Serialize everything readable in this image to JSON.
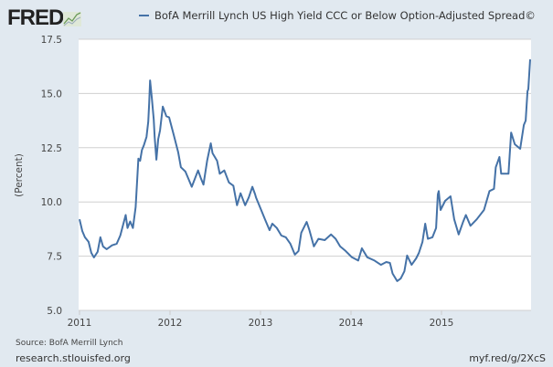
{
  "header": {
    "logo": "FRED",
    "logo_icon": "line-chart-icon"
  },
  "footer": {
    "source": "Source: BofA Merrill Lynch",
    "site": "research.stlouisfed.org",
    "short_url": "myf.red/g/2XcS"
  },
  "colors": {
    "line": "#4572a7",
    "background": "#e1e9f0",
    "plot": "#ffffff",
    "grid": "#d0d0d0"
  },
  "chart_data": {
    "type": "line",
    "title": "",
    "legend": [
      "BofA Merrill Lynch US High Yield CCC or Below Option-Adjusted Spread©"
    ],
    "legend_placement": "top",
    "xlabel": "",
    "ylabel": "(Percent)",
    "xlim": [
      2011.0,
      2016.0
    ],
    "ylim": [
      5.0,
      17.5
    ],
    "x_ticks": [
      "2011",
      "2012",
      "2013",
      "2014",
      "2015"
    ],
    "y_ticks": [
      "5.0",
      "7.5",
      "10.0",
      "12.5",
      "15.0",
      "17.5"
    ],
    "grid": true,
    "series": [
      {
        "name": "BofA Merrill Lynch US High Yield CCC or Below Option-Adjusted Spread©",
        "x": [
          2011.0,
          2011.03,
          2011.06,
          2011.1,
          2011.13,
          2011.16,
          2011.2,
          2011.23,
          2011.26,
          2011.3,
          2011.36,
          2011.41,
          2011.45,
          2011.51,
          2011.53,
          2011.56,
          2011.59,
          2011.62,
          2011.65,
          2011.67,
          2011.69,
          2011.71,
          2011.74,
          2011.76,
          2011.77,
          2011.78,
          2011.8,
          2011.82,
          2011.83,
          2011.85,
          2011.87,
          2011.89,
          2011.92,
          2011.96,
          2011.99,
          2012.04,
          2012.09,
          2012.12,
          2012.17,
          2012.21,
          2012.24,
          2012.31,
          2012.34,
          2012.37,
          2012.41,
          2012.45,
          2012.47,
          2012.52,
          2012.55,
          2012.6,
          2012.65,
          2012.7,
          2012.74,
          2012.78,
          2012.83,
          2012.87,
          2012.91,
          2012.94,
          2012.95,
          2013.0,
          2013.05,
          2013.1,
          2013.13,
          2013.18,
          2013.23,
          2013.28,
          2013.33,
          2013.38,
          2013.42,
          2013.45,
          2013.51,
          2013.54,
          2013.59,
          2013.64,
          2013.71,
          2013.78,
          2013.83,
          2013.88,
          2013.94,
          2014.01,
          2014.08,
          2014.12,
          2014.18,
          2014.26,
          2014.33,
          2014.39,
          2014.43,
          2014.46,
          2014.51,
          2014.55,
          2014.59,
          2014.62,
          2014.67,
          2014.72,
          2014.75,
          2014.79,
          2014.82,
          2014.85,
          2014.9,
          2014.94,
          2014.96,
          2014.97,
          2014.99,
          2015.04,
          2015.1,
          2015.14,
          2015.19,
          2015.24,
          2015.27,
          2015.32,
          2015.39,
          2015.47,
          2015.53,
          2015.58,
          2015.6,
          2015.64,
          2015.66,
          2015.74,
          2015.77,
          2015.81,
          2015.87,
          2015.91,
          2015.93,
          2015.95,
          2015.96,
          2015.98
        ],
        "y": [
          9.2,
          8.66,
          8.37,
          8.16,
          7.65,
          7.44,
          7.7,
          8.37,
          7.95,
          7.82,
          8.0,
          8.07,
          8.45,
          9.4,
          8.8,
          9.1,
          8.8,
          9.76,
          12.0,
          11.9,
          12.4,
          12.6,
          13.0,
          13.7,
          14.55,
          15.6,
          14.75,
          13.8,
          13.0,
          11.95,
          12.9,
          13.3,
          14.4,
          13.95,
          13.9,
          13.1,
          12.3,
          11.6,
          11.4,
          11.0,
          10.7,
          11.45,
          11.1,
          10.8,
          11.9,
          12.7,
          12.25,
          11.9,
          11.3,
          11.45,
          10.9,
          10.75,
          9.85,
          10.4,
          9.85,
          10.2,
          10.7,
          10.35,
          10.2,
          9.7,
          9.2,
          8.7,
          9.0,
          8.8,
          8.45,
          8.37,
          8.07,
          7.57,
          7.74,
          8.58,
          9.08,
          8.7,
          7.95,
          8.3,
          8.24,
          8.5,
          8.3,
          7.95,
          7.74,
          7.45,
          7.3,
          7.86,
          7.45,
          7.3,
          7.1,
          7.23,
          7.19,
          6.7,
          6.35,
          6.47,
          6.8,
          7.53,
          7.1,
          7.4,
          7.65,
          8.16,
          9.0,
          8.3,
          8.37,
          8.8,
          10.35,
          10.5,
          9.63,
          10.05,
          10.26,
          9.2,
          8.5,
          9.1,
          9.4,
          8.9,
          9.2,
          9.63,
          10.5,
          10.6,
          11.6,
          12.07,
          11.3,
          11.3,
          13.2,
          12.66,
          12.45,
          13.55,
          13.75,
          15.1,
          15.2,
          16.57
        ]
      }
    ]
  }
}
